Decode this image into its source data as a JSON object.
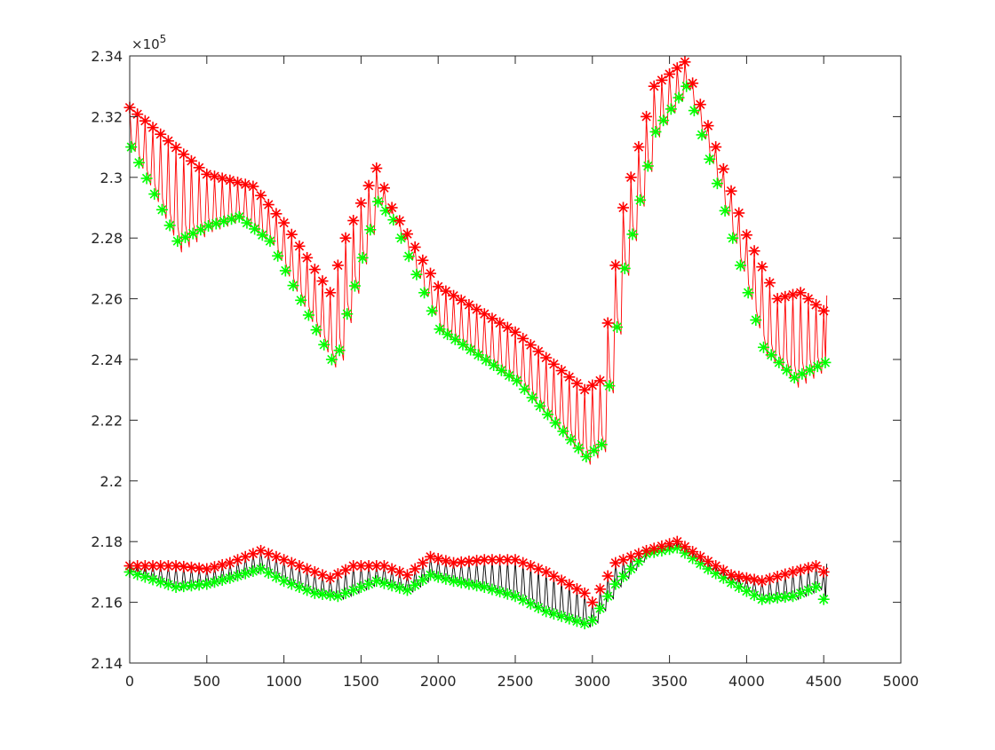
{
  "chart_data": {
    "type": "line",
    "title": "",
    "xlabel": "",
    "ylabel": "",
    "xlim": [
      0,
      5000
    ],
    "ylim": [
      214000,
      234000
    ],
    "x_ticks": [
      0,
      500,
      1000,
      1500,
      2000,
      2500,
      3000,
      3500,
      4000,
      4500,
      5000
    ],
    "x_tick_labels": [
      "0",
      "500",
      "1000",
      "1500",
      "2000",
      "2500",
      "3000",
      "3500",
      "4000",
      "4500",
      "5000"
    ],
    "y_ticks": [
      214000,
      216000,
      218000,
      220000,
      222000,
      224000,
      226000,
      228000,
      230000,
      232000,
      234000
    ],
    "y_tick_labels": [
      "2.14",
      "2.16",
      "2.18",
      "2.2",
      "2.22",
      "2.24",
      "2.26",
      "2.28",
      "2.3",
      "2.32",
      "2.34"
    ],
    "y_exponent_label": {
      "base": "×10",
      "exp": "5"
    },
    "grid": false,
    "legend": "none",
    "colors": {
      "upper_signal": "#ff0000",
      "lower_signal": "#000000",
      "peaks": "#ff0000",
      "troughs": "#00ff00",
      "axes": "#262626"
    },
    "peak_interval": 50,
    "upper_peaks": {
      "x": [
        0,
        500,
        800,
        1000,
        1300,
        1400,
        1600,
        1700,
        2000,
        2500,
        2950,
        3050,
        3200,
        3400,
        3600,
        3800,
        4000,
        4200,
        4350,
        4500
      ],
      "y": [
        232300,
        230100,
        229700,
        228500,
        226200,
        228000,
        230300,
        229000,
        226400,
        224900,
        223000,
        223300,
        229000,
        233000,
        233800,
        231000,
        228100,
        226000,
        226200,
        225600
      ]
    },
    "upper_troughs": {
      "x": [
        0,
        300,
        500,
        700,
        900,
        1300,
        1350,
        1400,
        1600,
        1700,
        2000,
        2500,
        2950,
        3050,
        3200,
        3400,
        3600,
        3800,
        4100,
        4300,
        4500
      ],
      "y": [
        231000,
        227900,
        228400,
        228700,
        227900,
        224000,
        224300,
        225500,
        229200,
        228600,
        225000,
        223300,
        220800,
        221200,
        227000,
        231500,
        233000,
        229800,
        224400,
        223400,
        223900
      ]
    },
    "lower_peaks": {
      "x": [
        0,
        300,
        500,
        650,
        850,
        1000,
        1300,
        1450,
        1650,
        1800,
        1950,
        2100,
        2300,
        2500,
        2700,
        2950,
        3000,
        3150,
        3350,
        3550,
        3700,
        3900,
        4100,
        4300,
        4450,
        4500
      ],
      "y": [
        217200,
        217200,
        217100,
        217300,
        217700,
        217400,
        216800,
        217200,
        217200,
        216900,
        217500,
        217300,
        217400,
        217400,
        217000,
        216300,
        216000,
        217300,
        217700,
        218000,
        217500,
        216900,
        216700,
        217000,
        217200,
        217000
      ]
    },
    "lower_troughs": {
      "x": [
        0,
        300,
        500,
        650,
        850,
        1000,
        1200,
        1350,
        1600,
        1800,
        1950,
        2100,
        2300,
        2500,
        2700,
        2950,
        3000,
        3150,
        3350,
        3550,
        3750,
        3950,
        4100,
        4300,
        4450,
        4500
      ],
      "y": [
        217000,
        216500,
        216600,
        216800,
        217100,
        216700,
        216300,
        216200,
        216700,
        216400,
        216900,
        216700,
        216500,
        216200,
        215700,
        215300,
        215400,
        216600,
        217600,
        217800,
        217100,
        216500,
        216100,
        216200,
        216500,
        216100
      ]
    }
  }
}
